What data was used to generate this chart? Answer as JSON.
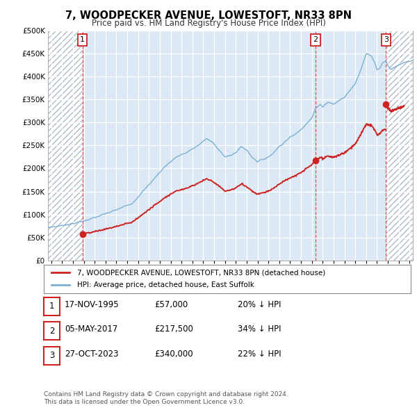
{
  "title": "7, WOODPECKER AVENUE, LOWESTOFT, NR33 8PN",
  "subtitle": "Price paid vs. HM Land Registry's House Price Index (HPI)",
  "hpi_color": "#7ab0d4",
  "price_color": "#cc2222",
  "bg_color": "#dce9f5",
  "ylim": [
    0,
    500000
  ],
  "yticks": [
    0,
    50000,
    100000,
    150000,
    200000,
    250000,
    300000,
    350000,
    400000,
    450000,
    500000
  ],
  "ytick_labels": [
    "£0",
    "£50K",
    "£100K",
    "£150K",
    "£200K",
    "£250K",
    "£300K",
    "£350K",
    "£400K",
    "£450K",
    "£500K"
  ],
  "xlim_start": 1992.7,
  "xlim_end": 2026.3,
  "t1_yr": 1995.88,
  "t2_yr": 2017.34,
  "t3_yr": 2023.82,
  "p1": 57000,
  "p2": 217500,
  "p3": 340000,
  "legend_label_red": "7, WOODPECKER AVENUE, LOWESTOFT, NR33 8PN (detached house)",
  "legend_label_blue": "HPI: Average price, detached house, East Suffolk",
  "footer": "Contains HM Land Registry data © Crown copyright and database right 2024.\nThis data is licensed under the Open Government Licence v3.0.",
  "table_rows": [
    {
      "num": 1,
      "date": "17-NOV-1995",
      "price": "£57,000",
      "pct": "20% ↓ HPI"
    },
    {
      "num": 2,
      "date": "05-MAY-2017",
      "price": "£217,500",
      "pct": "34% ↓ HPI"
    },
    {
      "num": 3,
      "date": "27-OCT-2023",
      "price": "£340,000",
      "pct": "22% ↓ HPI"
    }
  ]
}
